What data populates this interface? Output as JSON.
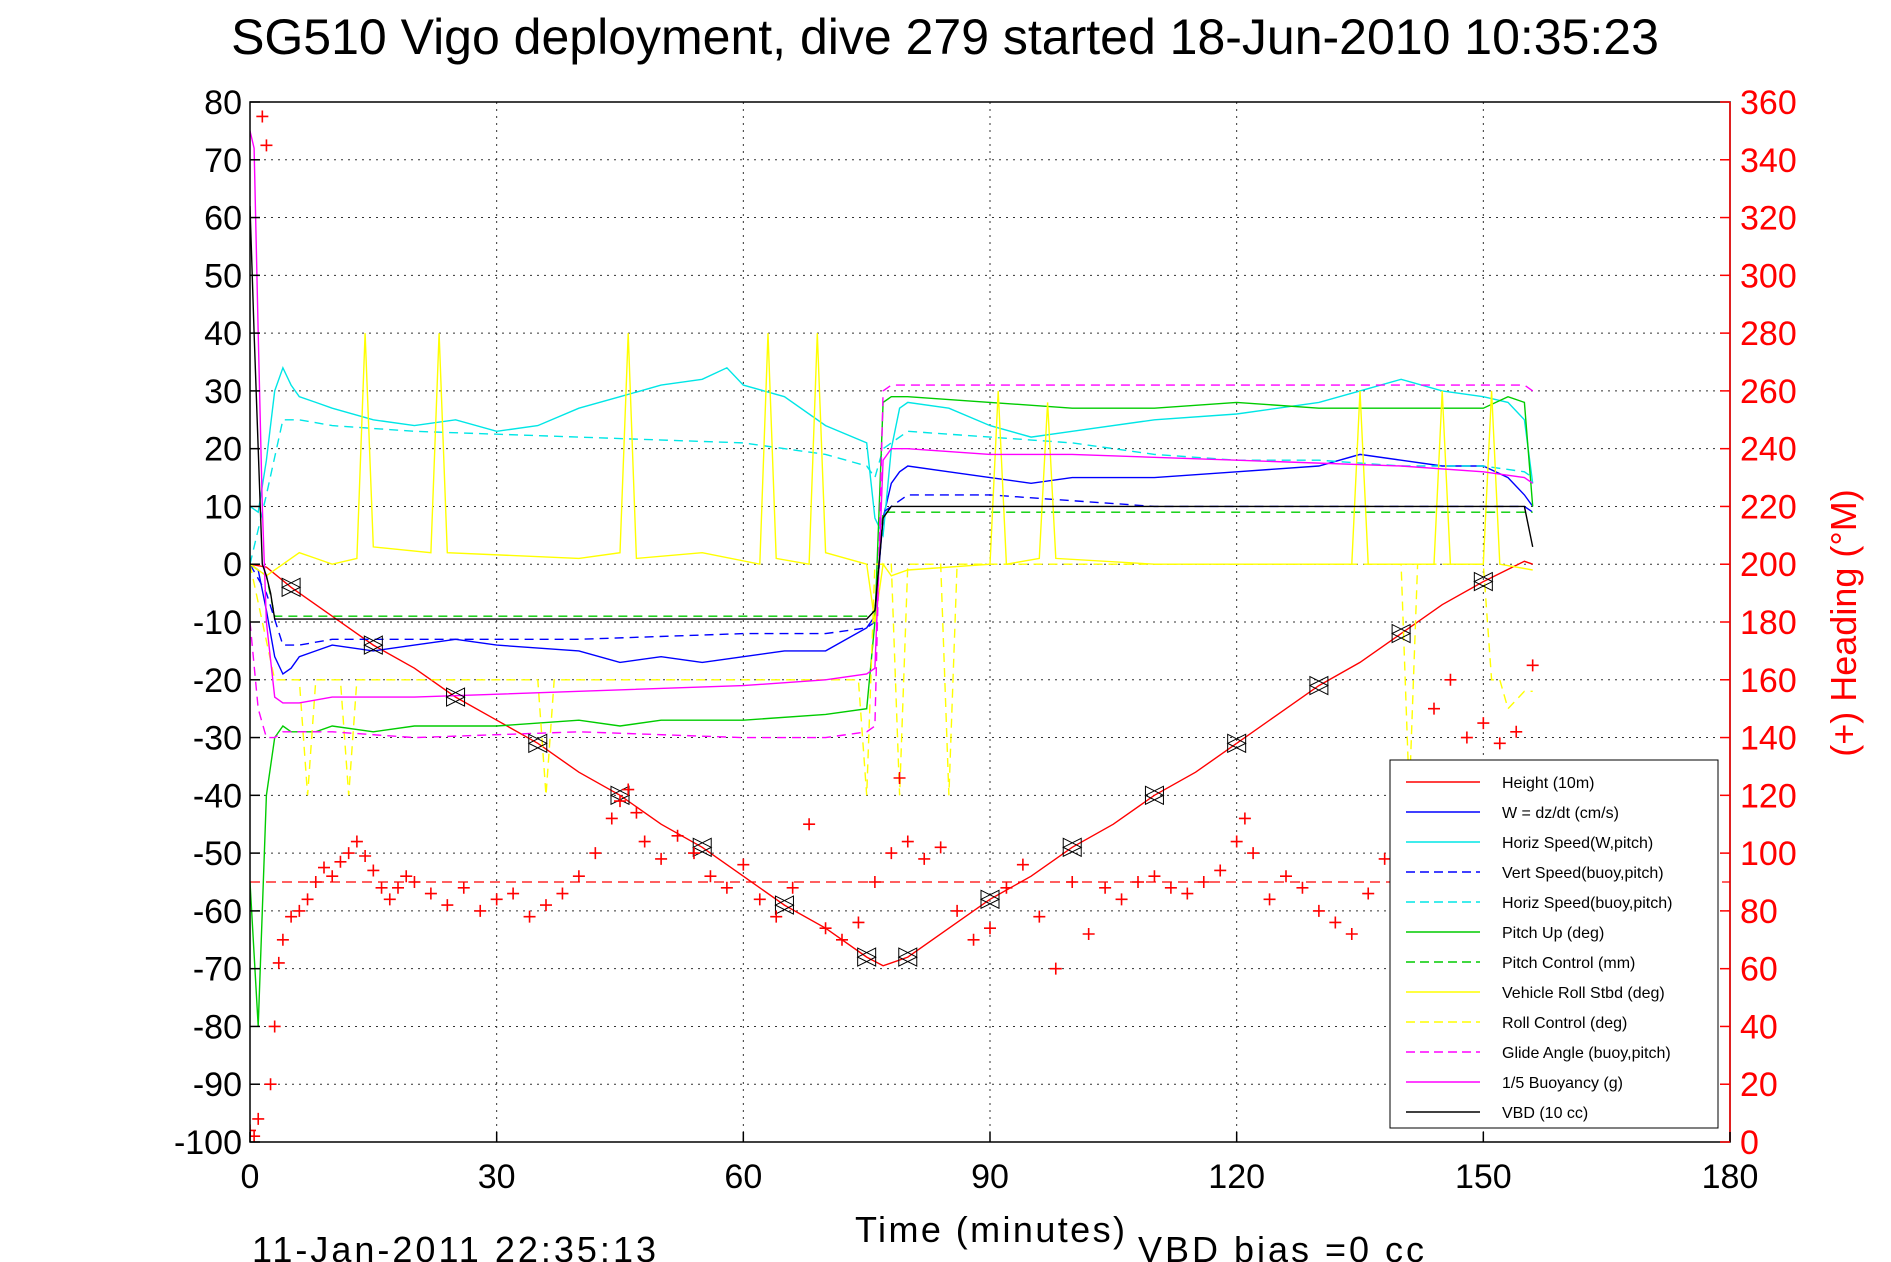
{
  "chart_data": {
    "type": "line",
    "title": "SG510 Vigo deployment, dive 279 started 18-Jun-2010 10:35:23",
    "xlabel": "Time (minutes)",
    "ylabel_right": "(+) Heading (°M)",
    "xlim": [
      0,
      180
    ],
    "ylim_left": [
      -100,
      80
    ],
    "ylim_right": [
      0,
      360
    ],
    "x_ticks": [
      "0",
      "30",
      "60",
      "90",
      "120",
      "150",
      "180"
    ],
    "y_ticks_left": [
      "80",
      "70",
      "60",
      "50",
      "40",
      "30",
      "20",
      "10",
      "0",
      "-10",
      "-20",
      "-30",
      "-40",
      "-50",
      "-60",
      "-70",
      "-80",
      "-90",
      "-100"
    ],
    "y_ticks_right": [
      "360",
      "340",
      "320",
      "300",
      "280",
      "260",
      "240",
      "220",
      "200",
      "180",
      "160",
      "140",
      "120",
      "100",
      "80",
      "60",
      "40",
      "20",
      "0"
    ],
    "grid": true,
    "legend_position": "bottom-right",
    "footer_timestamp": "11-Jan-2011 22:35:13",
    "footer_note": "VBD bias =0 cc",
    "series": [
      {
        "name": "Height (10m)",
        "color": "#ff0000",
        "dash": "solid",
        "x": [
          0,
          2,
          5,
          10,
          15,
          20,
          25,
          30,
          35,
          40,
          45,
          50,
          55,
          60,
          65,
          70,
          75,
          77,
          80,
          85,
          90,
          95,
          100,
          105,
          110,
          115,
          120,
          125,
          130,
          135,
          140,
          145,
          150,
          155,
          156
        ],
        "y": [
          0,
          -0.5,
          -4,
          -9,
          -14,
          -18,
          -23,
          -27,
          -31,
          -36,
          -40,
          -45,
          -49,
          -54,
          -59,
          -63,
          -68,
          -69.5,
          -68,
          -63,
          -58,
          -54,
          -49,
          -45,
          -40,
          -36,
          -31,
          -26,
          -21,
          -17,
          -12,
          -7,
          -3,
          0.5,
          0
        ]
      },
      {
        "name": "W = dz/dt (cm/s)",
        "color": "#0000ff",
        "dash": "solid",
        "x": [
          0,
          1,
          2,
          3,
          4,
          5,
          6,
          8,
          10,
          15,
          20,
          25,
          30,
          40,
          45,
          50,
          55,
          60,
          65,
          70,
          75,
          76,
          77,
          78,
          79,
          80,
          85,
          90,
          95,
          100,
          110,
          120,
          130,
          135,
          140,
          145,
          150,
          153,
          155,
          156
        ],
        "y": [
          0,
          -1,
          -8,
          -16,
          -19,
          -18,
          -16,
          -15,
          -14,
          -15,
          -14,
          -13,
          -14,
          -15,
          -17,
          -16,
          -17,
          -16,
          -15,
          -15,
          -11,
          -9,
          8,
          14,
          16,
          17,
          16,
          15,
          14,
          15,
          15,
          16,
          17,
          19,
          18,
          17,
          17,
          15,
          12,
          10
        ]
      },
      {
        "name": "Horiz Speed(W,pitch)",
        "color": "#00e6e6",
        "dash": "solid",
        "x": [
          0,
          1,
          2,
          3,
          4,
          5,
          6,
          8,
          10,
          15,
          20,
          25,
          30,
          35,
          40,
          45,
          50,
          55,
          58,
          60,
          65,
          70,
          75,
          76,
          77,
          78,
          79,
          80,
          85,
          90,
          95,
          100,
          110,
          120,
          130,
          135,
          140,
          145,
          150,
          153,
          155,
          156
        ],
        "y": [
          10,
          9,
          18,
          30,
          34,
          31,
          29,
          28,
          27,
          25,
          24,
          25,
          23,
          24,
          27,
          29,
          31,
          32,
          34,
          31,
          29,
          24,
          21,
          8,
          5,
          20,
          27,
          28,
          27,
          24,
          22,
          23,
          25,
          26,
          28,
          30,
          32,
          30,
          29,
          28,
          25,
          14
        ]
      },
      {
        "name": "Vert Speed(buoy,pitch)",
        "color": "#0000ff",
        "dash": "dashed",
        "x": [
          0,
          2,
          4,
          6,
          10,
          20,
          40,
          60,
          70,
          75,
          76,
          77,
          80,
          90,
          100,
          110,
          120,
          130,
          140,
          150,
          155,
          156
        ],
        "y": [
          0,
          -5,
          -14,
          -14,
          -13,
          -13,
          -13,
          -12,
          -12,
          -11,
          -10,
          9,
          12,
          12,
          11,
          10,
          10,
          10,
          10,
          10,
          10,
          9
        ]
      },
      {
        "name": "Horiz Speed(buoy,pitch)",
        "color": "#00e6e6",
        "dash": "dashed",
        "x": [
          0,
          2,
          4,
          6,
          10,
          20,
          40,
          60,
          70,
          75,
          76,
          77,
          80,
          90,
          100,
          110,
          120,
          130,
          140,
          150,
          155,
          156
        ],
        "y": [
          0,
          12,
          25,
          25,
          24,
          23,
          22,
          21,
          19,
          17,
          15,
          20,
          23,
          22,
          21,
          19,
          18,
          18,
          17,
          17,
          16,
          15
        ]
      },
      {
        "name": "Pitch Up (deg)",
        "color": "#00cc00",
        "dash": "solid",
        "x": [
          0,
          1,
          2,
          3,
          4,
          5,
          8,
          10,
          15,
          20,
          30,
          40,
          45,
          50,
          60,
          70,
          75,
          76,
          77,
          78,
          80,
          90,
          100,
          110,
          120,
          130,
          140,
          145,
          150,
          153,
          155,
          156
        ],
        "y": [
          -55,
          -80,
          -40,
          -30,
          -28,
          -29,
          -29,
          -28,
          -29,
          -28,
          -28,
          -27,
          -28,
          -27,
          -27,
          -26,
          -25,
          -10,
          28,
          29,
          29,
          28,
          27,
          27,
          28,
          27,
          27,
          27,
          27,
          29,
          28,
          10
        ]
      },
      {
        "name": "Pitch Control (mm)",
        "color": "#00cc00",
        "dash": "dashed",
        "x": [
          0,
          2,
          3,
          20,
          40,
          60,
          75,
          76,
          77,
          78,
          100,
          120,
          140,
          156
        ],
        "y": [
          0,
          -2,
          -9,
          -9,
          -9,
          -9,
          -9,
          -8,
          9,
          9,
          9,
          9,
          9,
          9
        ]
      },
      {
        "name": "Vehicle Roll Stbd (deg)",
        "color": "#ffff00",
        "dash": "solid",
        "x": [
          0,
          2,
          4,
          6,
          8,
          10,
          13,
          14,
          15,
          22,
          23,
          24,
          40,
          45,
          46,
          47,
          55,
          62,
          63,
          64,
          68,
          69,
          70,
          75,
          76,
          77,
          78,
          80,
          90,
          91,
          92,
          96,
          97,
          98,
          110,
          134,
          135,
          136,
          144,
          145,
          146,
          150,
          151,
          152,
          156
        ],
        "y": [
          0,
          -2,
          0,
          2,
          1,
          0,
          1,
          40,
          3,
          2,
          40,
          2,
          1,
          2,
          40,
          1,
          2,
          0,
          40,
          1,
          0,
          40,
          2,
          0,
          -10,
          0,
          -2,
          -1,
          0,
          30,
          0,
          1,
          28,
          1,
          0,
          0,
          30,
          0,
          0,
          30,
          0,
          0,
          30,
          0,
          -1
        ]
      },
      {
        "name": "Roll Control (deg)",
        "color": "#ffff00",
        "dash": "dashed",
        "x": [
          0,
          3,
          6,
          7,
          8,
          11,
          12,
          13,
          35,
          36,
          37,
          74,
          75,
          76,
          78,
          79,
          80,
          84,
          85,
          86,
          140,
          141,
          142,
          150,
          151,
          152,
          153,
          155,
          156
        ],
        "y": [
          0,
          -20,
          -20,
          -40,
          -20,
          -20,
          -40,
          -20,
          -20,
          -40,
          -20,
          -20,
          -40,
          0,
          0,
          -40,
          0,
          0,
          -40,
          0,
          0,
          -40,
          0,
          0,
          -20,
          -20,
          -25,
          -22,
          -22
        ]
      },
      {
        "name": "Glide Angle (buoy,pitch)",
        "color": "#ff00ff",
        "dash": "dashed",
        "x": [
          0,
          1,
          2,
          3,
          4,
          6,
          10,
          20,
          40,
          60,
          70,
          75,
          76,
          77,
          78,
          80,
          90,
          100,
          120,
          140,
          150,
          155,
          156
        ],
        "y": [
          -10,
          -25,
          -30,
          -30,
          -29,
          -29,
          -29,
          -30,
          -29,
          -30,
          -30,
          -29,
          -28,
          30,
          31,
          31,
          31,
          31,
          31,
          31,
          31,
          31,
          30
        ]
      },
      {
        "name": "1/5 Buoyancy (g)",
        "color": "#ff00ff",
        "dash": "solid",
        "x": [
          0,
          0.5,
          1,
          1.5,
          2,
          3,
          4,
          6,
          10,
          20,
          40,
          60,
          70,
          75,
          76,
          77,
          78,
          80,
          90,
          100,
          120,
          140,
          150,
          155,
          156
        ],
        "y": [
          75,
          72,
          40,
          10,
          -10,
          -23,
          -24,
          -24,
          -23,
          -23,
          -22,
          -21,
          -20,
          -19,
          -18,
          18,
          20,
          20,
          19,
          19,
          18,
          17,
          16,
          15,
          14
        ]
      },
      {
        "name": "VBD (10 cc)",
        "color": "#000000",
        "dash": "solid",
        "x": [
          0,
          0.5,
          1,
          1.5,
          2,
          2.5,
          3,
          10,
          30,
          60,
          75,
          76,
          77,
          78,
          80,
          100,
          120,
          140,
          150,
          155,
          156
        ],
        "y": [
          62,
          40,
          20,
          0,
          -2,
          -5,
          -9.5,
          -9.5,
          -9.5,
          -9.5,
          -9.5,
          -8,
          8,
          10,
          10,
          10,
          10,
          10,
          10,
          10,
          3
        ]
      }
    ],
    "heading_series": {
      "name": "(+) Heading",
      "color": "#ff0000",
      "marker": "+",
      "axis": "right",
      "mean": 90,
      "x": [
        0,
        0.5,
        1,
        1.5,
        2,
        2.5,
        3,
        3.5,
        4,
        5,
        6,
        7,
        8,
        9,
        10,
        11,
        12,
        13,
        14,
        15,
        16,
        17,
        18,
        19,
        20,
        22,
        24,
        26,
        28,
        30,
        32,
        34,
        36,
        38,
        40,
        42,
        44,
        45,
        46,
        47,
        48,
        50,
        52,
        54,
        56,
        58,
        60,
        62,
        64,
        66,
        68,
        70,
        72,
        74,
        76,
        78,
        79,
        80,
        82,
        84,
        86,
        88,
        90,
        92,
        94,
        96,
        98,
        100,
        102,
        104,
        106,
        108,
        110,
        112,
        114,
        116,
        118,
        120,
        121,
        122,
        124,
        126,
        128,
        130,
        132,
        134,
        136,
        138,
        140,
        142,
        144,
        146,
        148,
        150,
        152,
        154,
        156
      ],
      "y": [
        4,
        2,
        8,
        355,
        345,
        20,
        40,
        62,
        70,
        78,
        80,
        84,
        90,
        95,
        92,
        97,
        100,
        104,
        99,
        94,
        88,
        84,
        88,
        92,
        90,
        86,
        82,
        88,
        80,
        84,
        86,
        78,
        82,
        86,
        92,
        100,
        112,
        118,
        122,
        114,
        104,
        98,
        106,
        100,
        92,
        88,
        96,
        84,
        78,
        88,
        110,
        74,
        70,
        76,
        90,
        100,
        126,
        104,
        98,
        102,
        80,
        70,
        74,
        88,
        96,
        78,
        60,
        90,
        72,
        88,
        84,
        90,
        92,
        88,
        86,
        90,
        94,
        104,
        112,
        100,
        84,
        92,
        88,
        80,
        76,
        72,
        86,
        98,
        112,
        130,
        150,
        160,
        140,
        145,
        138,
        142,
        165
      ]
    }
  }
}
